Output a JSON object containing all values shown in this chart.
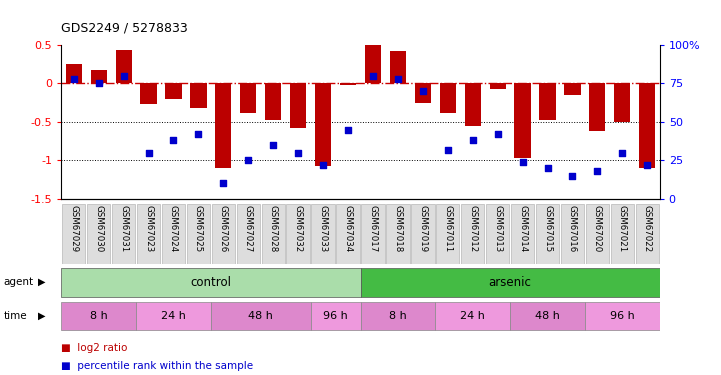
{
  "title": "GDS2249 / 5278833",
  "samples": [
    "GSM67029",
    "GSM67030",
    "GSM67031",
    "GSM67023",
    "GSM67024",
    "GSM67025",
    "GSM67026",
    "GSM67027",
    "GSM67028",
    "GSM67032",
    "GSM67033",
    "GSM67034",
    "GSM67017",
    "GSM67018",
    "GSM67019",
    "GSM67011",
    "GSM67012",
    "GSM67013",
    "GSM67014",
    "GSM67015",
    "GSM67016",
    "GSM67020",
    "GSM67021",
    "GSM67022"
  ],
  "log2_ratio": [
    0.25,
    0.18,
    0.43,
    -0.27,
    -0.2,
    -0.32,
    -1.1,
    -0.38,
    -0.47,
    -0.58,
    -1.08,
    -0.02,
    0.5,
    0.42,
    -0.25,
    -0.38,
    -0.55,
    -0.07,
    -0.97,
    -0.48,
    -0.15,
    -0.62,
    -0.5,
    -1.1
  ],
  "percentile": [
    78,
    75,
    80,
    30,
    38,
    42,
    10,
    25,
    35,
    30,
    22,
    45,
    80,
    78,
    70,
    32,
    38,
    42,
    24,
    20,
    15,
    18,
    30,
    22
  ],
  "bar_color": "#bb0000",
  "dot_color": "#0000cc",
  "hline_color": "#cc0000",
  "ylim_left": [
    -1.5,
    0.5
  ],
  "ylim_right": [
    0,
    100
  ],
  "yticks_left": [
    0.5,
    0.0,
    -0.5,
    -1.0,
    -1.5
  ],
  "yticks_right": [
    100,
    75,
    50,
    25,
    0
  ],
  "agent_groups": [
    {
      "label": "control",
      "start": 0,
      "end": 11,
      "color": "#aaddaa"
    },
    {
      "label": "arsenic",
      "start": 12,
      "end": 23,
      "color": "#44bb44"
    }
  ],
  "time_groups": [
    {
      "label": "8 h",
      "start": 0,
      "end": 2,
      "color": "#dd88cc"
    },
    {
      "label": "24 h",
      "start": 3,
      "end": 5,
      "color": "#ee99dd"
    },
    {
      "label": "48 h",
      "start": 6,
      "end": 9,
      "color": "#dd88cc"
    },
    {
      "label": "96 h",
      "start": 10,
      "end": 11,
      "color": "#ee99dd"
    },
    {
      "label": "8 h",
      "start": 12,
      "end": 14,
      "color": "#dd88cc"
    },
    {
      "label": "24 h",
      "start": 15,
      "end": 17,
      "color": "#ee99dd"
    },
    {
      "label": "48 h",
      "start": 18,
      "end": 20,
      "color": "#dd88cc"
    },
    {
      "label": "96 h",
      "start": 21,
      "end": 23,
      "color": "#ee99dd"
    }
  ],
  "legend_items": [
    {
      "label": "log2 ratio",
      "color": "#bb0000"
    },
    {
      "label": "percentile rank within the sample",
      "color": "#0000cc"
    }
  ],
  "fig_width": 7.21,
  "fig_height": 3.75,
  "dpi": 100
}
